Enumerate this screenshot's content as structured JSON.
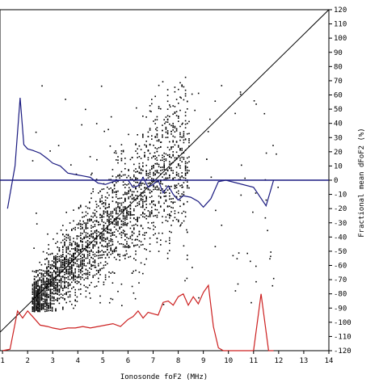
{
  "chart_data": {
    "type": "scatter",
    "xlabel": "Ionosonde foF2 (MHz)",
    "ylabel": "Fractional mean dFoF2 (%)",
    "xlim": [
      0.9,
      14
    ],
    "ylim": [
      -120,
      120
    ],
    "x_ticks": [
      1,
      2,
      3,
      4,
      5,
      6,
      7,
      8,
      9,
      10,
      11,
      12,
      13,
      14
    ],
    "y_ticks": [
      120,
      110,
      100,
      90,
      80,
      70,
      60,
      50,
      40,
      30,
      20,
      10,
      0,
      -10,
      -20,
      -30,
      -40,
      -50,
      -60,
      -70,
      -80,
      -90,
      -100,
      -110,
      -120
    ],
    "grid": false,
    "reference_line": {
      "x": [
        0.9,
        14
      ],
      "y": [
        -107,
        120
      ]
    },
    "zero_line": 0,
    "series": [
      {
        "type": "line",
        "color": "#1a1a80",
        "x": [
          1.2,
          1.5,
          1.7,
          1.85,
          2.0,
          2.2,
          2.5,
          2.8,
          3.0,
          3.3,
          3.6,
          3.9,
          4.2,
          4.5,
          4.8,
          5.1,
          5.4,
          5.7,
          6.0,
          6.2,
          6.4,
          6.6,
          6.8,
          7.0,
          7.2,
          7.4,
          7.6,
          7.8,
          8.0,
          8.2,
          8.5,
          8.8,
          9.0,
          9.3,
          9.6,
          9.9,
          11.0,
          11.5,
          11.8
        ],
        "y": [
          -20,
          10,
          58,
          25,
          22,
          21,
          19,
          15,
          12,
          10,
          5,
          4,
          3,
          2,
          -2,
          -3,
          -1,
          0,
          0,
          -5,
          -4,
          2,
          -5,
          -3,
          0,
          -9,
          -4,
          -10,
          -14,
          -11,
          -12,
          -15,
          -19,
          -13,
          -1,
          0,
          -5,
          -18,
          0
        ]
      },
      {
        "type": "line",
        "color": "#cc2020",
        "x": [
          1.0,
          1.3,
          1.6,
          1.8,
          2.0,
          2.2,
          2.5,
          2.8,
          3.0,
          3.3,
          3.6,
          3.9,
          4.2,
          4.5,
          4.8,
          5.1,
          5.4,
          5.7,
          6.0,
          6.2,
          6.4,
          6.6,
          6.8,
          7.0,
          7.2,
          7.4,
          7.6,
          7.8,
          8.0,
          8.2,
          8.4,
          8.6,
          8.8,
          9.0,
          9.2,
          9.4,
          9.6,
          9.8,
          10.0,
          11.0,
          11.3,
          11.6,
          11.8
        ],
        "y": [
          -120,
          -119,
          -92,
          -97,
          -92,
          -96,
          -102,
          -103,
          -104,
          -105,
          -104,
          -104,
          -103,
          -104,
          -103,
          -102,
          -101,
          -103,
          -98,
          -96,
          -92,
          -97,
          -93,
          -94,
          -95,
          -86,
          -85,
          -88,
          -82,
          -80,
          -88,
          -82,
          -87,
          -79,
          -74,
          -103,
          -118,
          -120,
          -120,
          -120,
          -80,
          -120,
          -120
        ]
      }
    ]
  },
  "axis": {
    "xlabel": "Ionosonde foF2 (MHz)",
    "ylabel": "Fractional mean dFoF2 (%)"
  }
}
